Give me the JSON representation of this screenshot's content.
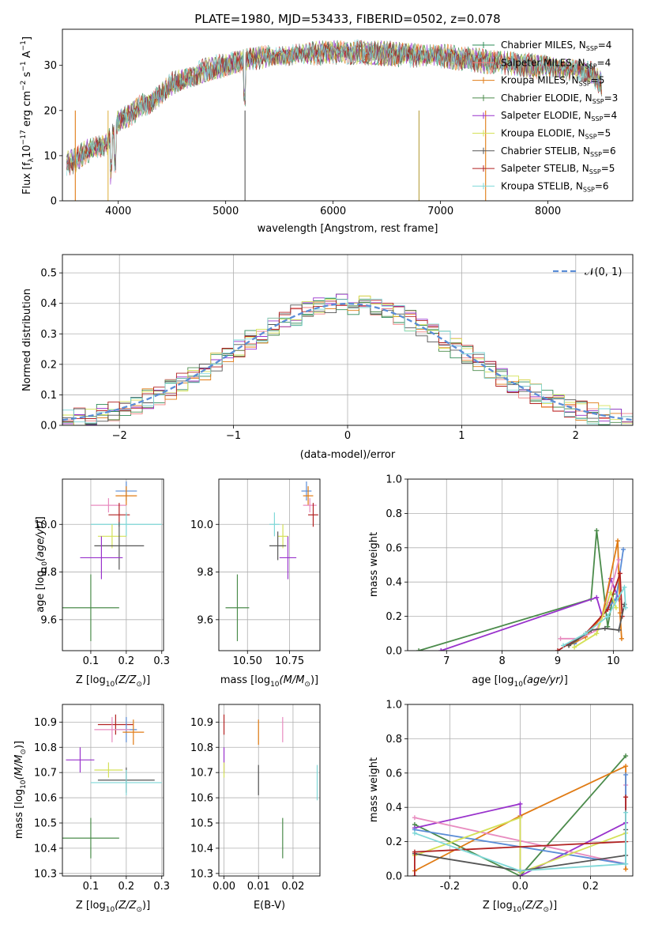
{
  "chart_data": [
    {
      "id": "spectrum",
      "type": "line",
      "title": "PLATE=1980, MJD=53433, FIBERID=0502, z=0.078",
      "xlabel": "wavelength [Angstrom, rest frame]",
      "ylabel": "Flux [f",
      "ylabel_parts": {
        "sub": "λ",
        "base": "10",
        "exp": "−17",
        "unit1": " erg cm",
        "exp2": "−2",
        "unit2": " s",
        "exp3": "−1",
        "unit3": " A",
        "exp4": "−1",
        "close": "]"
      },
      "xlim": [
        3480,
        8790
      ],
      "ylim": [
        0,
        38
      ],
      "xticks": [
        4000,
        5000,
        6000,
        7000,
        8000
      ],
      "yticks": [
        0,
        10,
        20,
        30
      ],
      "continuum": {
        "x": [
          3500,
          3600,
          3700,
          3800,
          3900,
          4000,
          4100,
          4200,
          4300,
          4400,
          4500,
          4600,
          4800,
          5000,
          5200,
          5400,
          5600,
          5800,
          6000,
          6200,
          6400,
          6600,
          6800,
          7000,
          7200,
          7400,
          7600,
          7800,
          8000,
          8200,
          8400,
          8500
        ],
        "y": [
          8,
          9,
          11,
          12,
          13,
          18,
          19,
          21,
          22,
          24,
          26,
          27,
          29,
          30,
          31,
          32,
          32,
          32.5,
          33,
          33,
          32.8,
          32.5,
          32,
          32,
          31.5,
          31,
          30.5,
          30,
          29.5,
          29,
          28.5,
          26
        ]
      },
      "legend": {
        "placement": "upper-right",
        "entries": [
          {
            "label": "Chabrier MILES, N",
            "sub": "SSP",
            "value": "=4",
            "color": "#2e8b57"
          },
          {
            "label": "Salpeter MILES, N",
            "sub": "SSP",
            "value": "=4",
            "color": "#f08080"
          },
          {
            "label": "Kroupa MILES, N",
            "sub": "SSP",
            "value": "=5",
            "color": "#e07b14"
          },
          {
            "label": "Chabrier ELODIE, N",
            "sub": "SSP",
            "value": "=3",
            "color": "#4b8b4b"
          },
          {
            "label": "Salpeter ELODIE, N",
            "sub": "SSP",
            "value": "=4",
            "color": "#9932cc"
          },
          {
            "label": "Kroupa ELODIE, N",
            "sub": "SSP",
            "value": "=5",
            "color": "#d4e157"
          },
          {
            "label": "Chabrier STELIB, N",
            "sub": "SSP",
            "value": "=6",
            "color": "#555555"
          },
          {
            "label": "Salpeter STELIB, N",
            "sub": "SSP",
            "value": "=5",
            "color": "#b22222"
          },
          {
            "label": "Kroupa STELIB, N",
            "sub": "SSP",
            "value": "=6",
            "color": "#7fd8d8"
          }
        ]
      }
    },
    {
      "id": "residuals",
      "type": "histogram",
      "xlabel": "(data-model)/error",
      "ylabel": "Normed distribution",
      "xlim": [
        -2.5,
        2.5
      ],
      "ylim": [
        0,
        0.56
      ],
      "xticks": [
        -2,
        -1,
        0,
        1,
        2
      ],
      "yticks": [
        0.0,
        0.1,
        0.2,
        0.3,
        0.4,
        0.5
      ],
      "grid": true,
      "gaussian_label": "𝒩(0, 1)",
      "gaussian_color": "#5b8dd6",
      "legend_placement": "upper-right",
      "series_colors": [
        "#2e8b57",
        "#f08080",
        "#e07b14",
        "#4b8b4b",
        "#9932cc",
        "#d4e157",
        "#555555",
        "#b22222",
        "#7fd8d8"
      ]
    },
    {
      "id": "age-vs-Z",
      "type": "errorbar",
      "xlabel": "Z [log",
      "xlabel_tail": "(Z/Z",
      "ylabel": "age  [log",
      "xlim": [
        0.02,
        0.305
      ],
      "ylim": [
        9.47,
        10.19
      ],
      "xticks": [
        0.1,
        0.2,
        0.3
      ],
      "yticks": [
        9.6,
        9.8,
        10.0
      ],
      "points": [
        {
          "x": 0.2,
          "y": 10.14,
          "xerr": 0.03,
          "yerr": 0.04,
          "color": "#5b8dd6"
        },
        {
          "x": 0.2,
          "y": 10.12,
          "xerr": 0.03,
          "yerr": 0.04,
          "color": "#e07b14"
        },
        {
          "x": 0.15,
          "y": 10.08,
          "xerr": 0.05,
          "yerr": 0.03,
          "color": "#e88bbf"
        },
        {
          "x": 0.18,
          "y": 10.04,
          "xerr": 0.03,
          "yerr": 0.05,
          "color": "#b22222"
        },
        {
          "x": 0.2,
          "y": 10.0,
          "xerr": 0.1,
          "yerr": 0.05,
          "color": "#7fd8d8"
        },
        {
          "x": 0.16,
          "y": 9.95,
          "xerr": 0.04,
          "yerr": 0.05,
          "color": "#d4e157"
        },
        {
          "x": 0.18,
          "y": 9.91,
          "xerr": 0.07,
          "yerr": 0.1,
          "color": "#555555"
        },
        {
          "x": 0.13,
          "y": 9.86,
          "xerr": 0.06,
          "yerr": 0.09,
          "color": "#9932cc"
        },
        {
          "x": 0.1,
          "y": 9.65,
          "xerr": 0.08,
          "yerr": 0.14,
          "color": "#4b8b4b"
        }
      ]
    },
    {
      "id": "age-vs-mass",
      "type": "errorbar",
      "xlabel": "mass [log",
      "xlabel_tail": "(M/M",
      "xlim": [
        10.33,
        10.93
      ],
      "ylim": [
        9.47,
        10.19
      ],
      "xticks": [
        10.5,
        10.75
      ],
      "yticks": [
        9.6,
        9.8,
        10.0
      ],
      "points": [
        {
          "x": 10.85,
          "y": 10.14,
          "xerr": 0.03,
          "yerr": 0.04,
          "color": "#5b8dd6"
        },
        {
          "x": 10.86,
          "y": 10.12,
          "xerr": 0.03,
          "yerr": 0.04,
          "color": "#e07b14"
        },
        {
          "x": 10.87,
          "y": 10.08,
          "xerr": 0.04,
          "yerr": 0.03,
          "color": "#e88bbf"
        },
        {
          "x": 10.89,
          "y": 10.04,
          "xerr": 0.03,
          "yerr": 0.05,
          "color": "#b22222"
        },
        {
          "x": 10.66,
          "y": 10.0,
          "xerr": 0.03,
          "yerr": 0.05,
          "color": "#7fd8d8"
        },
        {
          "x": 10.71,
          "y": 9.95,
          "xerr": 0.03,
          "yerr": 0.05,
          "color": "#d4e157"
        },
        {
          "x": 10.68,
          "y": 9.91,
          "xerr": 0.05,
          "yerr": 0.06,
          "color": "#555555"
        },
        {
          "x": 10.74,
          "y": 9.86,
          "xerr": 0.05,
          "yerr": 0.09,
          "color": "#9932cc"
        },
        {
          "x": 10.44,
          "y": 9.65,
          "xerr": 0.07,
          "yerr": 0.14,
          "color": "#4b8b4b"
        }
      ]
    },
    {
      "id": "weight-vs-age",
      "type": "line",
      "xlabel": "age  [log",
      "ylabel": "mass weight",
      "xlim": [
        6.3,
        10.35
      ],
      "ylim": [
        0,
        1.0
      ],
      "xticks": [
        7,
        8,
        9,
        10
      ],
      "yticks": [
        0.0,
        0.2,
        0.4,
        0.6,
        0.8,
        1.0
      ],
      "grid": true,
      "series": [
        {
          "color": "#4b8b4b",
          "x": [
            6.5,
            9.6,
            9.7,
            9.9,
            10.0
          ],
          "y": [
            0.0,
            0.3,
            0.7,
            0.14,
            0.33
          ]
        },
        {
          "color": "#9932cc",
          "x": [
            6.9,
            9.7,
            9.8,
            9.95,
            10.1
          ],
          "y": [
            0.0,
            0.31,
            0.2,
            0.42,
            0.3
          ]
        },
        {
          "color": "#5b8dd6",
          "x": [
            9.3,
            9.6,
            9.9,
            10.05,
            10.18
          ],
          "y": [
            0.04,
            0.12,
            0.25,
            0.3,
            0.59
          ]
        },
        {
          "color": "#e07b14",
          "x": [
            9.2,
            9.5,
            9.8,
            10.08,
            10.12,
            10.15
          ],
          "y": [
            0.03,
            0.08,
            0.2,
            0.64,
            0.22,
            0.07
          ]
        },
        {
          "color": "#e88bbf",
          "x": [
            9.05,
            9.4,
            9.7,
            9.9,
            10.1
          ],
          "y": [
            0.07,
            0.07,
            0.12,
            0.28,
            0.53
          ]
        },
        {
          "color": "#b22222",
          "x": [
            9.0,
            9.5,
            9.9,
            10.12,
            10.16
          ],
          "y": [
            0.0,
            0.1,
            0.24,
            0.45,
            0.2
          ]
        },
        {
          "color": "#d4e157",
          "x": [
            9.3,
            9.7,
            9.95,
            10.05
          ],
          "y": [
            0.02,
            0.1,
            0.34,
            0.25
          ]
        },
        {
          "color": "#555555",
          "x": [
            9.2,
            9.6,
            9.85,
            10.1,
            10.2
          ],
          "y": [
            0.03,
            0.12,
            0.13,
            0.12,
            0.27
          ]
        },
        {
          "color": "#7fd8d8",
          "x": [
            9.1,
            9.5,
            9.9,
            10.2,
            10.22
          ],
          "y": [
            0.03,
            0.1,
            0.2,
            0.37,
            0.25
          ]
        }
      ]
    },
    {
      "id": "mass-vs-Z",
      "type": "errorbar",
      "xlabel": "Z [log",
      "xlabel_tail": "(Z/Z",
      "ylabel": "mass [log",
      "xlim": [
        0.02,
        0.305
      ],
      "ylim": [
        10.29,
        10.97
      ],
      "xticks": [
        0.1,
        0.2,
        0.3
      ],
      "yticks": [
        10.3,
        10.4,
        10.5,
        10.6,
        10.7,
        10.8,
        10.9
      ],
      "points": [
        {
          "x": 0.17,
          "y": 10.89,
          "xerr": 0.05,
          "yerr": 0.04,
          "color": "#b22222"
        },
        {
          "x": 0.2,
          "y": 10.87,
          "xerr": 0.03,
          "yerr": 0.05,
          "color": "#5b8dd6"
        },
        {
          "x": 0.16,
          "y": 10.87,
          "xerr": 0.05,
          "yerr": 0.05,
          "color": "#e88bbf"
        },
        {
          "x": 0.22,
          "y": 10.86,
          "xerr": 0.03,
          "yerr": 0.05,
          "color": "#e07b14"
        },
        {
          "x": 0.07,
          "y": 10.75,
          "xerr": 0.04,
          "yerr": 0.05,
          "color": "#9932cc"
        },
        {
          "x": 0.15,
          "y": 10.71,
          "xerr": 0.04,
          "yerr": 0.03,
          "color": "#d4e157"
        },
        {
          "x": 0.2,
          "y": 10.67,
          "xerr": 0.08,
          "yerr": 0.05,
          "color": "#555555"
        },
        {
          "x": 0.2,
          "y": 10.66,
          "xerr": 0.1,
          "yerr": 0.05,
          "color": "#7fd8d8"
        },
        {
          "x": 0.1,
          "y": 10.44,
          "xerr": 0.08,
          "yerr": 0.08,
          "color": "#4b8b4b"
        }
      ]
    },
    {
      "id": "mass-vs-ebv",
      "type": "errorbar",
      "xlabel": "E(B-V)",
      "xlim": [
        -0.0015,
        0.0278
      ],
      "ylim": [
        10.29,
        10.97
      ],
      "xticks": [
        0.0,
        0.01,
        0.02
      ],
      "yticks": [
        10.3,
        10.4,
        10.5,
        10.6,
        10.7,
        10.8,
        10.9
      ],
      "points": [
        {
          "x": 0.0,
          "y": 10.89,
          "xerr": 0,
          "yerr": 0.04,
          "color": "#b22222"
        },
        {
          "x": 0.0,
          "y": 10.75,
          "xerr": 0,
          "yerr": 0.05,
          "color": "#9932cc"
        },
        {
          "x": 0.0,
          "y": 10.71,
          "xerr": 0,
          "yerr": 0.03,
          "color": "#d4e157"
        },
        {
          "x": 0.01,
          "y": 10.86,
          "xerr": 0,
          "yerr": 0.05,
          "color": "#e07b14"
        },
        {
          "x": 0.01,
          "y": 10.67,
          "xerr": 0,
          "yerr": 0.06,
          "color": "#555555"
        },
        {
          "x": 0.017,
          "y": 10.87,
          "xerr": 0,
          "yerr": 0.05,
          "color": "#e88bbf"
        },
        {
          "x": 0.017,
          "y": 10.44,
          "xerr": 0,
          "yerr": 0.08,
          "color": "#4b8b4b"
        },
        {
          "x": 0.027,
          "y": 10.66,
          "xerr": 0,
          "yerr": 0.07,
          "color": "#7fd8d8"
        }
      ]
    },
    {
      "id": "weight-vs-Z",
      "type": "line",
      "xlabel": "Z [log",
      "xlabel_tail": "(Z/Z",
      "ylabel": "mass weight",
      "xlim": [
        -0.32,
        0.32
      ],
      "ylim": [
        0,
        1.0
      ],
      "xticks": [
        -0.2,
        0.0,
        0.2
      ],
      "yticks": [
        0.0,
        0.2,
        0.4,
        0.6,
        0.8,
        1.0
      ],
      "grid": true,
      "series": [
        {
          "color": "#4b8b4b",
          "x": [
            -0.3,
            0.0,
            0.3
          ],
          "y": [
            0.3,
            0.0,
            0.7
          ]
        },
        {
          "color": "#e07b14",
          "x": [
            -0.3,
            0.0,
            0.3,
            0.3
          ],
          "y": [
            0.03,
            0.35,
            0.64,
            0.04
          ]
        },
        {
          "color": "#9932cc",
          "x": [
            -0.3,
            0.0,
            0.0,
            0.3
          ],
          "y": [
            0.28,
            0.42,
            0.0,
            0.31
          ]
        },
        {
          "color": "#e88bbf",
          "x": [
            -0.3,
            0.3,
            0.3
          ],
          "y": [
            0.34,
            0.07,
            0.53
          ]
        },
        {
          "color": "#5b8dd6",
          "x": [
            -0.3,
            0.3,
            0.3
          ],
          "y": [
            0.27,
            0.07,
            0.59
          ]
        },
        {
          "color": "#d4e157",
          "x": [
            -0.3,
            0.0,
            0.0,
            0.3
          ],
          "y": [
            0.12,
            0.34,
            0.02,
            0.25
          ]
        },
        {
          "color": "#555555",
          "x": [
            -0.3,
            0.0,
            0.3,
            0.3
          ],
          "y": [
            0.13,
            0.03,
            0.12,
            0.27
          ]
        },
        {
          "color": "#b22222",
          "x": [
            -0.3,
            -0.3,
            0.3,
            0.3
          ],
          "y": [
            0.0,
            0.14,
            0.2,
            0.46
          ]
        },
        {
          "color": "#7fd8d8",
          "x": [
            -0.3,
            0.0,
            0.3,
            0.3
          ],
          "y": [
            0.25,
            0.03,
            0.07,
            0.37
          ]
        }
      ]
    }
  ]
}
